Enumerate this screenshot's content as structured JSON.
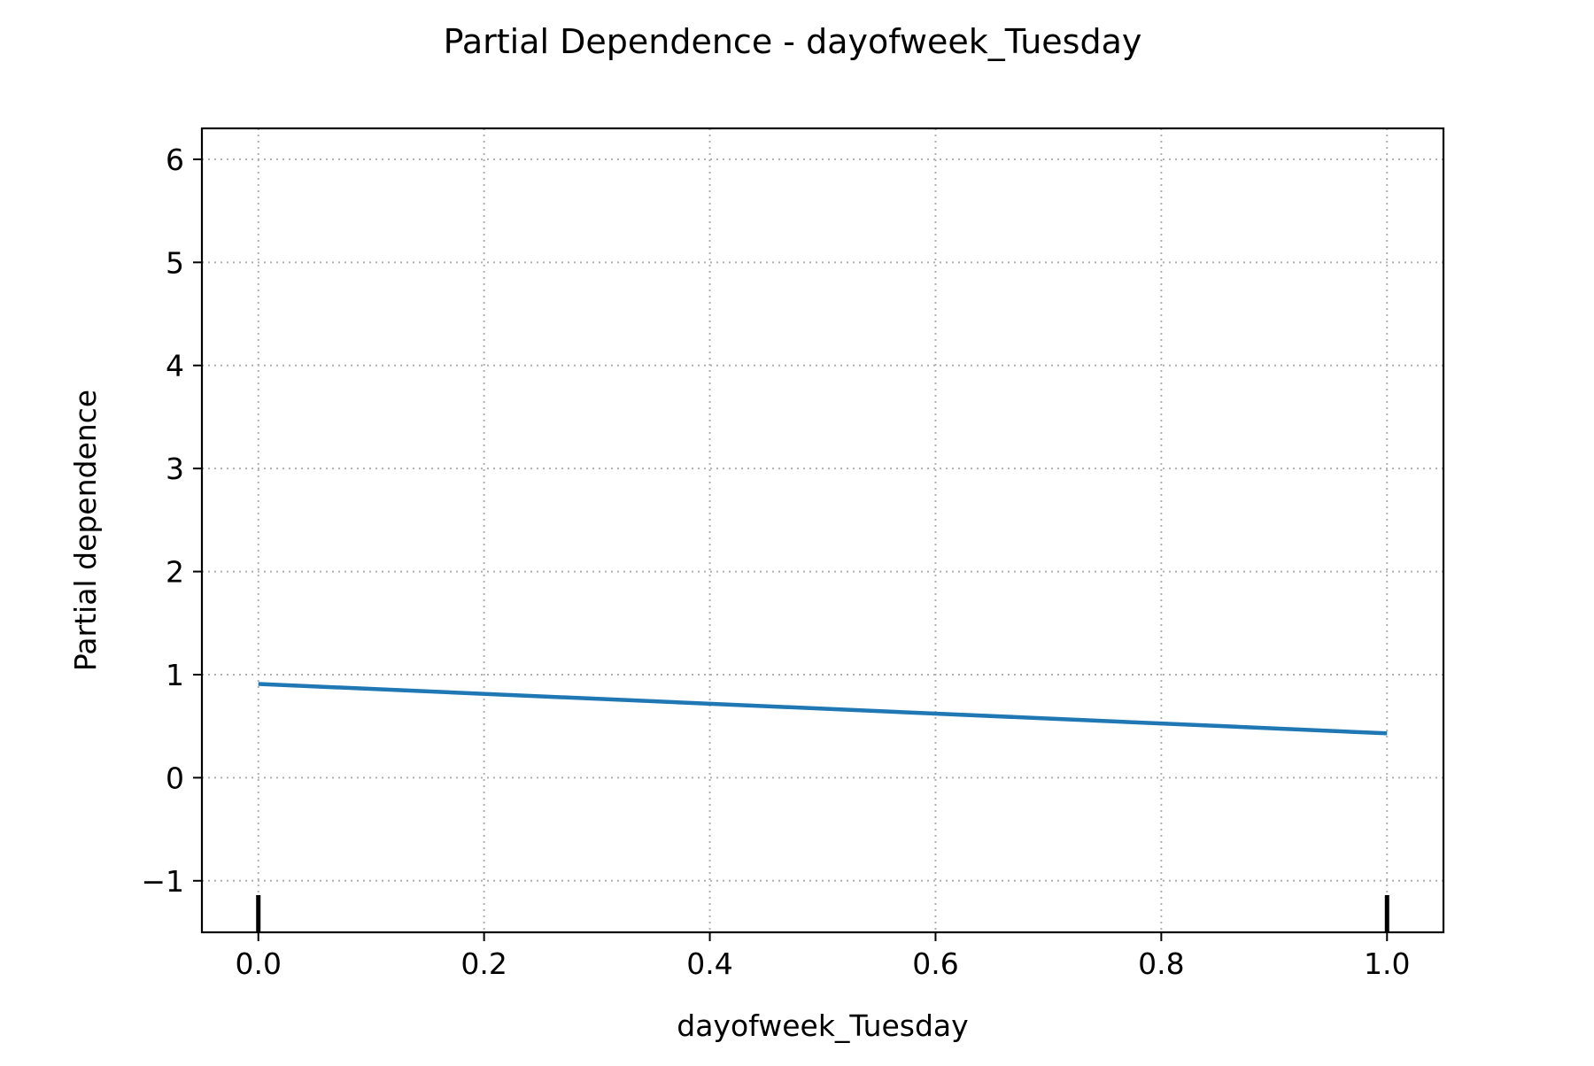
{
  "chart_data": {
    "type": "line",
    "title": "Partial Dependence - dayofweek_Tuesday",
    "xlabel": "dayofweek_Tuesday",
    "ylabel": "Partial dependence",
    "xlim": [
      -0.05,
      1.05
    ],
    "ylim": [
      -1.5,
      6.3
    ],
    "x_ticks": [
      0.0,
      0.2,
      0.4,
      0.6,
      0.8,
      1.0
    ],
    "x_tick_labels": [
      "0.0",
      "0.2",
      "0.4",
      "0.6",
      "0.8",
      "1.0"
    ],
    "y_ticks": [
      -1,
      0,
      1,
      2,
      3,
      4,
      5,
      6
    ],
    "y_tick_labels": [
      "−1",
      "0",
      "1",
      "2",
      "3",
      "4",
      "5",
      "6"
    ],
    "grid": true,
    "series": [
      {
        "x": [
          0.0,
          1.0
        ],
        "values": [
          0.91,
          0.43
        ],
        "color": "#1f77b4"
      }
    ],
    "rug": {
      "x": [
        0.0,
        1.0
      ],
      "color": "#000000"
    }
  }
}
